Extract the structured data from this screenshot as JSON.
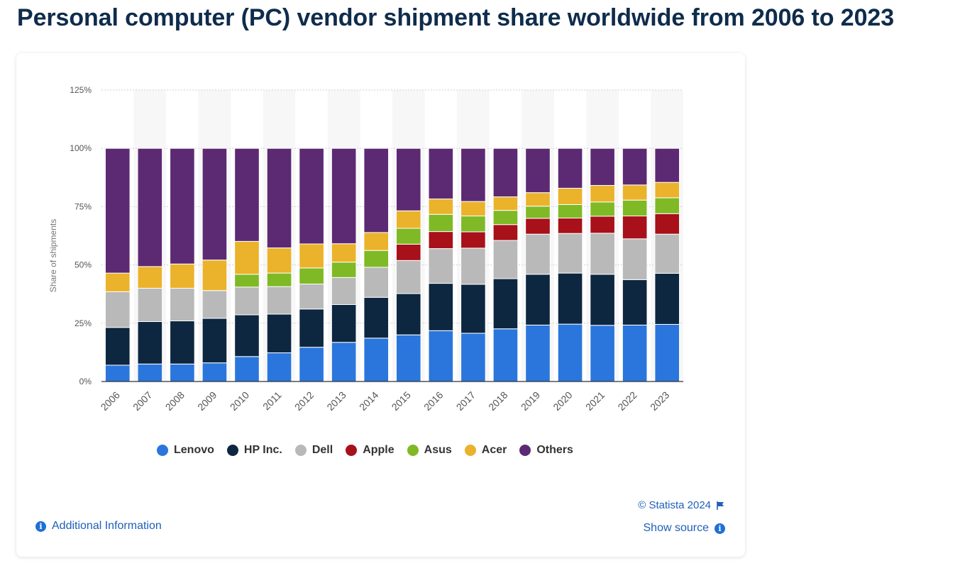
{
  "title": "Personal computer (PC) vendor shipment share worldwide from 2006 to 2023",
  "footer": {
    "credit": "© Statista 2024",
    "show_source": "Show source",
    "additional_info": "Additional Information"
  },
  "icons": {
    "flag": "flag-icon",
    "info": "info-icon"
  },
  "chart_data": {
    "type": "bar",
    "stacked": true,
    "categories": [
      "2006",
      "2007",
      "2008",
      "2009",
      "2010",
      "2011",
      "2012",
      "2013",
      "2014",
      "2015",
      "2016",
      "2017",
      "2018",
      "2019",
      "2020",
      "2021",
      "2022",
      "2023"
    ],
    "ylabel": "Share of shipments",
    "ylim": [
      0,
      125
    ],
    "yticks": [
      "0%",
      "25%",
      "50%",
      "75%",
      "100%",
      "125%"
    ],
    "grid": true,
    "legend_position": "bottom",
    "series": [
      {
        "name": "Lenovo",
        "color": "#2a76dd",
        "values": [
          7,
          7.5,
          7.5,
          8,
          10.7,
          12.3,
          14.7,
          16.8,
          18.6,
          20,
          21.8,
          20.7,
          22.6,
          24.2,
          24.6,
          24.1,
          24.2,
          24.5
        ]
      },
      {
        "name": "HP Inc.",
        "color": "#0e2740",
        "values": [
          16.2,
          18.2,
          18.5,
          19.1,
          17.9,
          16.6,
          16.4,
          16.2,
          17.5,
          17.7,
          20.3,
          21,
          21.5,
          21.8,
          21.9,
          21.9,
          19.5,
          21.9
        ]
      },
      {
        "name": "Dell",
        "color": "#b9b9b9",
        "values": [
          15.3,
          14.3,
          14,
          11.9,
          11.9,
          11.8,
          10.7,
          11.6,
          12.9,
          14.2,
          14.9,
          15.5,
          16.4,
          17.2,
          17,
          17.6,
          17.5,
          16.8
        ]
      },
      {
        "name": "Apple",
        "color": "#a8101a",
        "values": [
          0,
          0,
          0,
          0,
          0,
          0,
          0,
          0,
          0,
          7,
          7.3,
          7,
          6.8,
          6.8,
          6.6,
          7.3,
          9.8,
          8.8
        ]
      },
      {
        "name": "Asus",
        "color": "#7fb925",
        "values": [
          0,
          0,
          0,
          0,
          5.5,
          5.8,
          6.9,
          6.6,
          7.2,
          6.8,
          7.4,
          6.8,
          6.1,
          5.2,
          5.8,
          6.1,
          6.8,
          6.8
        ]
      },
      {
        "name": "Acer",
        "color": "#ebb22b",
        "values": [
          8,
          9.3,
          10.4,
          13.1,
          14.1,
          10.8,
          10.3,
          7.9,
          7.7,
          7.5,
          6.6,
          6.2,
          5.8,
          5.8,
          7,
          7.1,
          6.5,
          6.6
        ]
      },
      {
        "name": "Others",
        "color": "#5c2a73",
        "values": [
          53.5,
          50.7,
          49.6,
          47.9,
          39.9,
          42.7,
          41,
          40.9,
          36.1,
          26.8,
          21.7,
          22.8,
          20.8,
          19,
          17.1,
          15.9,
          15.7,
          14.6
        ]
      }
    ]
  }
}
